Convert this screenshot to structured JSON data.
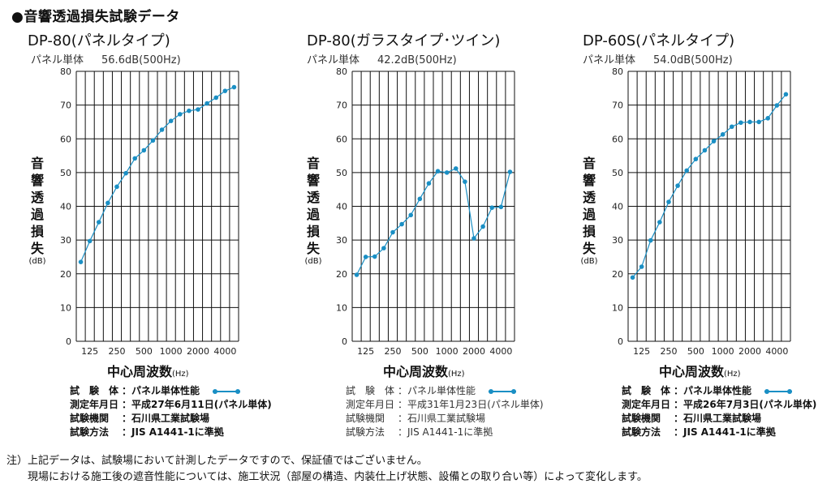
{
  "heading": "●音響透過損失試験データ",
  "y_axis_label_chars": [
    "音",
    "響",
    "透",
    "過",
    "損",
    "失"
  ],
  "y_axis_unit": "(dB)",
  "x_axis_label": "中心周波数",
  "x_axis_unit": "(Hz)",
  "chart_data": [
    {
      "type": "line",
      "title": "DP-80(パネルタイプ)",
      "subtitle_label": "パネル単体",
      "subtitle_value": "56.6dB(500Hz)",
      "x": [
        100,
        125,
        160,
        200,
        250,
        315,
        400,
        500,
        630,
        800,
        1000,
        1250,
        1600,
        2000,
        2500,
        3150,
        4000,
        5000
      ],
      "series": [
        {
          "values": [
            23.5,
            29.7,
            35.3,
            41,
            45.8,
            49.8,
            54.2,
            56.6,
            59.5,
            62.7,
            65.3,
            67.3,
            68.3,
            68.7,
            70.5,
            72.2,
            74.2,
            75.3
          ]
        }
      ],
      "x_tick_labels": [
        "125",
        "250",
        "500",
        "1000",
        "2000",
        "4000"
      ],
      "y_ticks": [
        0,
        10,
        20,
        30,
        40,
        50,
        60,
        70,
        80
      ],
      "ylim": [
        0,
        80
      ],
      "grid": true,
      "info_rows": [
        {
          "label": "試　験　体",
          "value": "パネル単体性能"
        },
        {
          "label": "測定年月日",
          "value": "平成27年6月11日(パネル単体)"
        },
        {
          "label": "試験機関",
          "value": "石川県工業試験場"
        },
        {
          "label": "試験方法",
          "value": "JIS A1441-1に準拠"
        }
      ]
    },
    {
      "type": "line",
      "title": "DP-80(ガラスタイプ･ツイン)",
      "subtitle_label": "パネル単体",
      "subtitle_value": "42.2dB(500Hz)",
      "x": [
        100,
        125,
        160,
        200,
        250,
        315,
        400,
        500,
        630,
        800,
        1000,
        1250,
        1600,
        2000,
        2500,
        3150,
        4000,
        5000
      ],
      "series": [
        {
          "values": [
            19.7,
            25,
            25.1,
            27.6,
            32.3,
            34.7,
            37.4,
            42.2,
            46.8,
            50.4,
            50,
            51.2,
            47.3,
            30.5,
            34,
            39.6,
            39.8,
            50.2
          ]
        }
      ],
      "x_tick_labels": [
        "125",
        "250",
        "500",
        "1000",
        "2000",
        "4000"
      ],
      "y_ticks": [
        0,
        10,
        20,
        30,
        40,
        50,
        60,
        70,
        80
      ],
      "ylim": [
        0,
        80
      ],
      "grid": true,
      "info_rows": [
        {
          "label": "試　験　体",
          "value": "パネル単体性能"
        },
        {
          "label": "測定年月日",
          "value": "平成31年1月23日(パネル単体)"
        },
        {
          "label": "試験機関",
          "value": "石川県工業試験場"
        },
        {
          "label": "試験方法",
          "value": "JIS A1441-1に準拠"
        }
      ]
    },
    {
      "type": "line",
      "title": "DP-60S(パネルタイプ)",
      "subtitle_label": "パネル単体",
      "subtitle_value": "54.0dB(500Hz)",
      "x": [
        100,
        125,
        160,
        200,
        250,
        315,
        400,
        500,
        630,
        800,
        1000,
        1250,
        1600,
        2000,
        2500,
        3150,
        4000,
        5000
      ],
      "series": [
        {
          "values": [
            18.9,
            22.1,
            29.9,
            35.3,
            41.3,
            46.1,
            50.6,
            54,
            56.6,
            59.3,
            61.3,
            63.6,
            64.8,
            65,
            65,
            66.1,
            69.9,
            73.2
          ]
        }
      ],
      "x_tick_labels": [
        "125",
        "250",
        "500",
        "1000",
        "2000",
        "4000"
      ],
      "y_ticks": [
        0,
        10,
        20,
        30,
        40,
        50,
        60,
        70,
        80
      ],
      "ylim": [
        0,
        80
      ],
      "grid": true,
      "info_rows": [
        {
          "label": "試　験　体",
          "value": "パネル単体性能"
        },
        {
          "label": "測定年月日",
          "value": "平成26年7月3日(パネル単体)"
        },
        {
          "label": "試験機関",
          "value": "石川県工業試験場"
        },
        {
          "label": "試験方法",
          "value": "JIS A1441-1に準拠"
        }
      ]
    }
  ],
  "colors": {
    "line": "#1a8fc4",
    "grid": "#111111"
  },
  "notes": [
    "注）上記データは、試験場において計測したデータですので、保証値ではございません。",
    "　　現場における施工後の遮音性能については、施工状況（部屋の構造、内装仕上げ状態、設備との取り合い等）によって変化します。"
  ]
}
